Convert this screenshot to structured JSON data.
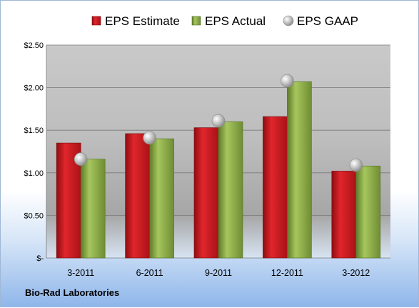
{
  "chart_data": {
    "type": "bar",
    "categories": [
      "3-2011",
      "6-2011",
      "9-2011",
      "12-2011",
      "3-2012"
    ],
    "series": [
      {
        "name": "EPS Estimate",
        "kind": "bar",
        "color": "#c0161c",
        "values": [
          1.35,
          1.46,
          1.53,
          1.66,
          1.02
        ]
      },
      {
        "name": "EPS Actual",
        "kind": "bar",
        "color": "#8aab45",
        "values": [
          1.16,
          1.4,
          1.6,
          2.07,
          1.08
        ]
      },
      {
        "name": "EPS GAAP",
        "kind": "marker",
        "color": "#b8b8b8",
        "values": [
          1.16,
          1.41,
          1.61,
          2.08,
          1.09
        ]
      }
    ],
    "ylim": [
      0,
      2.5
    ],
    "yticks": [
      0,
      0.5,
      1.0,
      1.5,
      2.0,
      2.5
    ],
    "ytick_labels": [
      "$-",
      "$0.50",
      "$1.00",
      "$1.50",
      "$2.00",
      "$2.50"
    ],
    "grid": true,
    "legend": "top"
  },
  "footer": {
    "company": "Bio-Rad Laboratories"
  }
}
